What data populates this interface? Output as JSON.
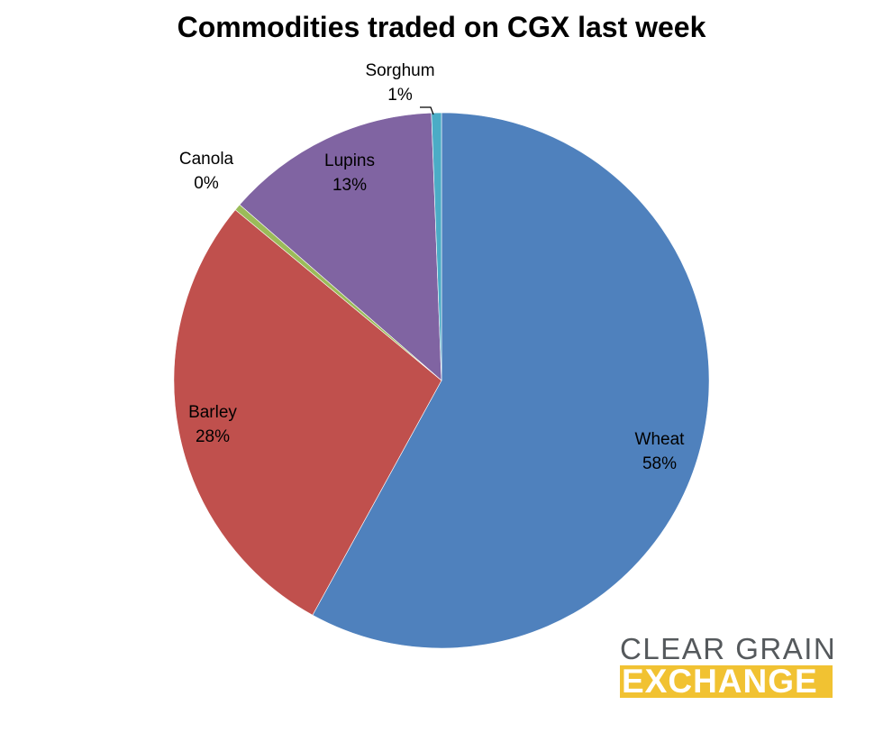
{
  "chart_data": {
    "type": "pie",
    "title": "Commodities traded on CGX last week",
    "slices": [
      {
        "name": "Wheat",
        "value": 58,
        "label": "58%",
        "color": "#4f81bd"
      },
      {
        "name": "Barley",
        "value": 28,
        "label": "28%",
        "color": "#c0504d"
      },
      {
        "name": "Canola",
        "value": 0.4,
        "label": "0%",
        "color": "#9bbb59"
      },
      {
        "name": "Lupins",
        "value": 13,
        "label": "13%",
        "color": "#8064a2"
      },
      {
        "name": "Sorghum",
        "value": 0.6,
        "label": "1%",
        "color": "#4bacc6"
      }
    ]
  },
  "logo": {
    "line1": "CLEAR GRAIN",
    "line2": "EXCHANGE",
    "accent": "#f1c232",
    "text_color": "#55595c"
  }
}
